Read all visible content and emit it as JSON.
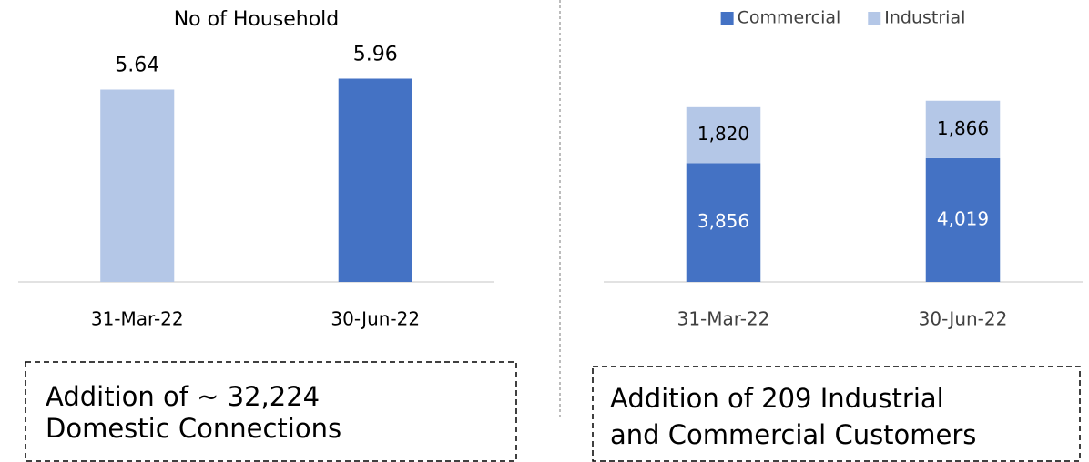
{
  "chart_data": [
    {
      "type": "bar",
      "title": "No of Household",
      "categories": [
        "31-Mar-22",
        "30-Jun-22"
      ],
      "values": [
        5.64,
        5.96
      ],
      "colors": [
        "#b4c7e7",
        "#4472c4"
      ],
      "ylim": [
        0,
        7
      ],
      "grid": false,
      "annotation": [
        "Addition of ~ 32,224",
        "Domestic Connections"
      ]
    },
    {
      "type": "stacked_bar",
      "categories": [
        "31-Mar-22",
        "30-Jun-22"
      ],
      "series": [
        {
          "name": "Commercial",
          "color": "#4472c4",
          "values": [
            3856,
            4019
          ],
          "value_labels": [
            "3,856",
            "4,019"
          ]
        },
        {
          "name": "Industrial",
          "color": "#b4c7e7",
          "values": [
            1820,
            1866
          ],
          "value_labels": [
            "1,820",
            "1,866"
          ]
        }
      ],
      "ylim": [
        0,
        7000
      ],
      "grid": false,
      "legend": "top",
      "annotation": [
        "Addition of 209 Industrial",
        "and Commercial Customers"
      ]
    }
  ]
}
